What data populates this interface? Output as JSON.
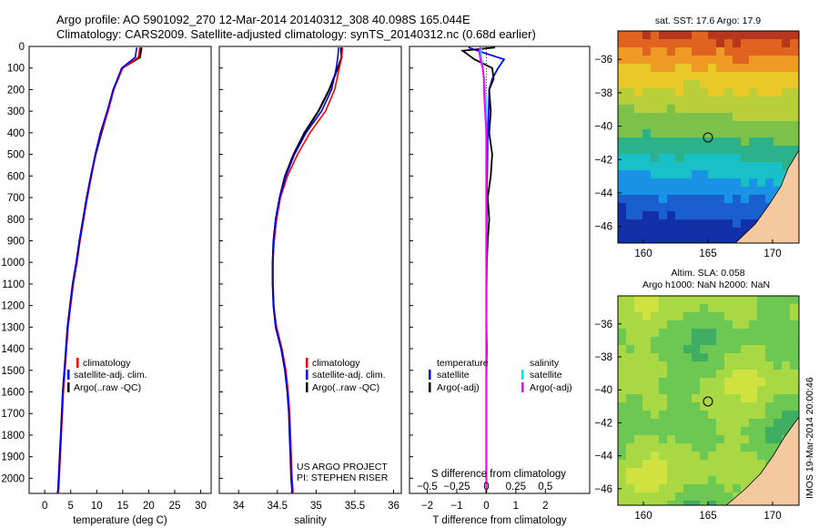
{
  "header": {
    "title_line1": "Argo profile: AO 5901092_270 12-Mar-2014 20140312_308 40.098S 165.044E",
    "title_line2": "Climatology: CARS2009. Satellite-adjusted climatology: synTS_20140312.nc (0.68d earlier)"
  },
  "colors": {
    "climatology": "#ff0000",
    "satellite_adj": "#0000ff",
    "argo": "#000000",
    "t_satellite": "#0000ff",
    "s_satellite": "#00e5ff",
    "s_argo_adj": "#ff00ff",
    "land": "#f5c9a0"
  },
  "panels": {
    "temperature": {
      "xlabel": "temperature (deg C)",
      "legend": [
        "climatology",
        "satellite-adj. clim.",
        "Argo(..raw -QC)"
      ]
    },
    "salinity": {
      "xlabel": "salinity",
      "legend": [
        "climatology",
        "satellite-adj. clim.",
        "Argo(..raw -QC)"
      ],
      "credit_line1": "US ARGO PROJECT",
      "credit_line2": "PI: STEPHEN RISER"
    },
    "difference": {
      "legend_t_head": "temperature",
      "legend_t_sat": "satellite",
      "legend_t_argo": "Argo(-adj)",
      "legend_s_head": "salinity",
      "legend_s_sat": "satellite",
      "legend_s_argo": "Argo(-adj)",
      "s_label": "S difference from climatology",
      "t_label": "T difference from climatology"
    },
    "sst_map": {
      "title": "sat. SST: 17.6 Argo: 17.9",
      "yticks": [
        "-36",
        "-38",
        "-40",
        "-42",
        "-44",
        "-46"
      ],
      "xticks": [
        "160",
        "165",
        "170"
      ]
    },
    "sla_map": {
      "title_line1": "Altim. SLA: 0.058",
      "title_line2": "Argo h1000: NaN h2000: NaN",
      "yticks": [
        "-36",
        "-38",
        "-40",
        "-42",
        "-44",
        "-46"
      ],
      "xticks": [
        "160",
        "165",
        "170"
      ]
    },
    "footer_vertical": "IMOS 19-Mar-2014 20:00:46"
  },
  "chart_data": [
    {
      "type": "line",
      "name": "temperature profile",
      "xlabel": "temperature (deg C)",
      "ylabel": "",
      "xlim": [
        -3,
        32
      ],
      "ylim": [
        2070,
        0
      ],
      "xticks": [
        0,
        5,
        10,
        15,
        20,
        25,
        30
      ],
      "yticks": [
        0,
        100,
        200,
        300,
        400,
        500,
        600,
        700,
        800,
        900,
        1000,
        1100,
        1200,
        1300,
        1400,
        1500,
        1600,
        1700,
        1800,
        1900,
        2000
      ],
      "grid": false,
      "legend_position": "lower-right",
      "series": [
        {
          "name": "climatology",
          "x": [
            18.3,
            18.0,
            15.0,
            13.3,
            12.2,
            10.8,
            9.8,
            9.0,
            8.2,
            7.5,
            6.8,
            6.2,
            5.5,
            5.0,
            4.5,
            4.2,
            3.9,
            3.6,
            3.4,
            3.2,
            3.0,
            2.8,
            2.7,
            2.6
          ],
          "y": [
            5,
            50,
            100,
            200,
            300,
            400,
            500,
            600,
            700,
            800,
            900,
            1000,
            1100,
            1200,
            1300,
            1400,
            1500,
            1600,
            1700,
            1800,
            1900,
            2000,
            2050,
            2070
          ]
        },
        {
          "name": "satellite-adj. clim.",
          "x": [
            17.7,
            17.4,
            14.8,
            13.2,
            12.0,
            10.7,
            9.7,
            8.9,
            8.1,
            7.4,
            6.7,
            6.1,
            5.4,
            4.9,
            4.4,
            4.1,
            3.8,
            3.5,
            3.3,
            3.1,
            2.9,
            2.7,
            2.6,
            2.5
          ],
          "y": [
            5,
            50,
            100,
            200,
            300,
            400,
            500,
            600,
            700,
            800,
            900,
            1000,
            1100,
            1200,
            1300,
            1400,
            1500,
            1600,
            1700,
            1800,
            1900,
            2000,
            2050,
            2070
          ]
        },
        {
          "name": "Argo(..raw -QC)",
          "x": [
            18.6,
            18.3,
            14.9,
            13.2,
            12.1,
            10.9,
            9.8,
            8.9,
            8.1,
            7.4,
            6.7,
            6.1,
            5.4,
            4.9,
            4.4,
            4.1,
            3.8,
            3.5,
            3.3,
            3.1,
            2.9,
            2.7,
            2.6,
            2.5
          ],
          "y": [
            5,
            50,
            100,
            200,
            300,
            400,
            500,
            600,
            700,
            800,
            900,
            1000,
            1100,
            1200,
            1300,
            1400,
            1500,
            1600,
            1700,
            1800,
            1900,
            2000,
            2050,
            2070
          ]
        }
      ]
    },
    {
      "type": "line",
      "name": "salinity profile",
      "xlabel": "salinity",
      "ylabel": "",
      "xlim": [
        33.75,
        36.1
      ],
      "ylim": [
        2070,
        0
      ],
      "xticks": [
        34,
        34.5,
        35,
        35.5,
        36
      ],
      "grid": false,
      "legend_position": "lower-right",
      "series": [
        {
          "name": "climatology",
          "x": [
            35.34,
            35.33,
            35.3,
            35.24,
            35.12,
            34.92,
            34.76,
            34.63,
            34.54,
            34.49,
            34.46,
            34.44,
            34.44,
            34.45,
            34.49,
            34.56,
            34.61,
            34.64,
            34.66,
            34.67,
            34.68,
            34.69,
            34.7,
            34.7
          ],
          "y": [
            5,
            50,
            100,
            200,
            300,
            400,
            500,
            600,
            700,
            800,
            900,
            1000,
            1100,
            1200,
            1300,
            1400,
            1500,
            1600,
            1700,
            1800,
            1900,
            2000,
            2050,
            2070
          ]
        },
        {
          "name": "satellite-adj. clim.",
          "x": [
            35.29,
            35.28,
            35.26,
            35.2,
            35.07,
            34.87,
            34.72,
            34.61,
            34.53,
            34.48,
            34.45,
            34.44,
            34.44,
            34.45,
            34.48,
            34.55,
            34.6,
            34.63,
            34.65,
            34.66,
            34.67,
            34.68,
            34.69,
            34.69
          ],
          "y": [
            5,
            50,
            100,
            200,
            300,
            400,
            500,
            600,
            700,
            800,
            900,
            1000,
            1100,
            1200,
            1300,
            1400,
            1500,
            1600,
            1700,
            1800,
            1900,
            2000,
            2050,
            2070
          ]
        },
        {
          "name": "Argo(..raw -QC)",
          "x": [
            35.32,
            35.33,
            35.28,
            35.17,
            35.03,
            34.85,
            34.71,
            34.6,
            34.53,
            34.48,
            34.45,
            34.44,
            34.44,
            34.45,
            34.48,
            34.55,
            34.6,
            34.63,
            34.65,
            34.66,
            34.67,
            34.68,
            34.69,
            34.69
          ],
          "y": [
            5,
            50,
            100,
            200,
            300,
            400,
            500,
            600,
            700,
            800,
            900,
            1000,
            1100,
            1200,
            1300,
            1400,
            1500,
            1600,
            1700,
            1800,
            1900,
            2000,
            2050,
            2070
          ]
        }
      ]
    },
    {
      "type": "line",
      "name": "difference from climatology",
      "xlim": [
        -2.6,
        3.5
      ],
      "ylim": [
        2070,
        0
      ],
      "t_axis": {
        "label": "T difference from climatology",
        "ticks": [
          -2,
          -1,
          0,
          1,
          2
        ]
      },
      "s_axis": {
        "label": "S difference from climatology",
        "ticks": [
          -0.5,
          -0.25,
          0,
          0.25,
          0.5
        ]
      },
      "grid": false,
      "legend_position": "lower",
      "series": [
        {
          "name": "temperature satellite",
          "x": [
            -0.6,
            -0.3,
            0.6,
            0.4,
            0.2,
            0.1,
            0.08,
            0.05,
            0.04,
            0.03,
            0.02,
            0.02,
            0.01,
            0.01,
            0.01,
            0.0,
            0.0,
            0.0,
            0.0,
            0.0,
            0.0,
            0.0
          ],
          "y": [
            5,
            20,
            60,
            100,
            150,
            200,
            300,
            400,
            500,
            600,
            700,
            800,
            900,
            1000,
            1200,
            1400,
            1600,
            1800,
            1900,
            2000,
            2050,
            2070
          ]
        },
        {
          "name": "temperature Argo(-adj)",
          "x": [
            0.3,
            -0.8,
            -0.4,
            0.2,
            0.25,
            0.1,
            0.15,
            0.1,
            0.2,
            0.15,
            0.05,
            0.1,
            0.05,
            0.02,
            0.0,
            0.02,
            0.0,
            0.0,
            0.0,
            0.0,
            0.0,
            0.0
          ],
          "y": [
            5,
            20,
            60,
            100,
            150,
            200,
            300,
            400,
            500,
            600,
            700,
            800,
            900,
            1000,
            1200,
            1400,
            1600,
            1800,
            1900,
            2000,
            2050,
            2070
          ]
        },
        {
          "name": "salinity satellite",
          "x": [
            -0.04,
            -0.05,
            -0.04,
            -0.03,
            -0.02,
            -0.01,
            0.0,
            0.0,
            0.0,
            0.0,
            0.0,
            0.0,
            0.0,
            0.0,
            0.0,
            0.0,
            0.0,
            0.0,
            0.0,
            0.0,
            0.0,
            0.0
          ],
          "y": [
            5,
            20,
            60,
            100,
            150,
            200,
            300,
            400,
            500,
            600,
            700,
            800,
            900,
            1000,
            1200,
            1400,
            1600,
            1800,
            1900,
            2000,
            2050,
            2070
          ]
        },
        {
          "name": "salinity Argo(-adj)",
          "x": [
            -0.05,
            -0.06,
            -0.05,
            -0.03,
            -0.02,
            -0.02,
            -0.01,
            0.0,
            0.0,
            0.0,
            0.0,
            0.0,
            0.0,
            0.0,
            0.0,
            0.0,
            0.0,
            0.0,
            0.0,
            0.0,
            0.0,
            0.0
          ],
          "y": [
            5,
            20,
            60,
            100,
            150,
            200,
            300,
            400,
            500,
            600,
            700,
            800,
            900,
            1000,
            1200,
            1400,
            1600,
            1800,
            1900,
            2000,
            2050,
            2070
          ]
        }
      ]
    }
  ]
}
